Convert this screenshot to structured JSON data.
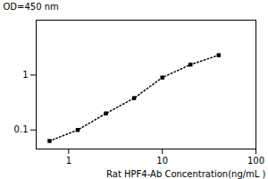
{
  "chart_data": {
    "type": "line",
    "xlabel": "Rat HPF4-Ab Concentration(ng/mL )",
    "ylabel": "OD=450 nm",
    "x": [
      0.625,
      1.25,
      2.5,
      5.0,
      10.0,
      20.0,
      40.0
    ],
    "values": [
      0.063,
      0.1,
      0.2,
      0.38,
      0.9,
      1.55,
      2.3
    ],
    "xlim": [
      0.45,
      100
    ],
    "ylim": [
      0.045,
      10.0
    ],
    "xticks": [
      1,
      10,
      100
    ],
    "yticks": [
      0.1,
      1
    ],
    "log": true,
    "grid": false,
    "marker": "square",
    "line_style": "dotted"
  }
}
